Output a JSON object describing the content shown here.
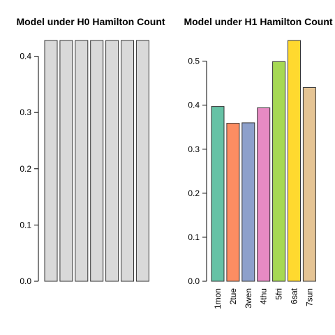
{
  "chart_data": [
    {
      "type": "bar",
      "title": "Model under H0 Hamilton Count",
      "categories": [
        "",
        "",
        "",
        "",
        "",
        "",
        ""
      ],
      "values": [
        0.428,
        0.428,
        0.428,
        0.428,
        0.428,
        0.428,
        0.428
      ],
      "ylim": [
        0,
        0.428
      ],
      "yticks": [
        0.0,
        0.1,
        0.2,
        0.3,
        0.4
      ],
      "ytick_labels": [
        "0.0",
        "0.1",
        "0.2",
        "0.3",
        "0.4"
      ],
      "colors": [
        "#d9d9d9",
        "#d9d9d9",
        "#d9d9d9",
        "#d9d9d9",
        "#d9d9d9",
        "#d9d9d9",
        "#d9d9d9"
      ],
      "xlabel": "",
      "ylabel": ""
    },
    {
      "type": "bar",
      "title": "Model under H1 Hamilton Count",
      "categories": [
        "1mon",
        "2tue",
        "3wen",
        "4thu",
        "5fri",
        "6sat",
        "7sun"
      ],
      "values": [
        0.397,
        0.359,
        0.36,
        0.394,
        0.499,
        0.547,
        0.44
      ],
      "ylim": [
        0,
        0.547
      ],
      "yticks": [
        0.0,
        0.1,
        0.2,
        0.3,
        0.4,
        0.5
      ],
      "ytick_labels": [
        "0.0",
        "0.1",
        "0.2",
        "0.3",
        "0.4",
        "0.5"
      ],
      "colors": [
        "#66c2a5",
        "#fc8d62",
        "#8da0cb",
        "#e78ac3",
        "#a6d854",
        "#ffd92f",
        "#e5c494"
      ],
      "xlabel": "",
      "ylabel": ""
    }
  ]
}
